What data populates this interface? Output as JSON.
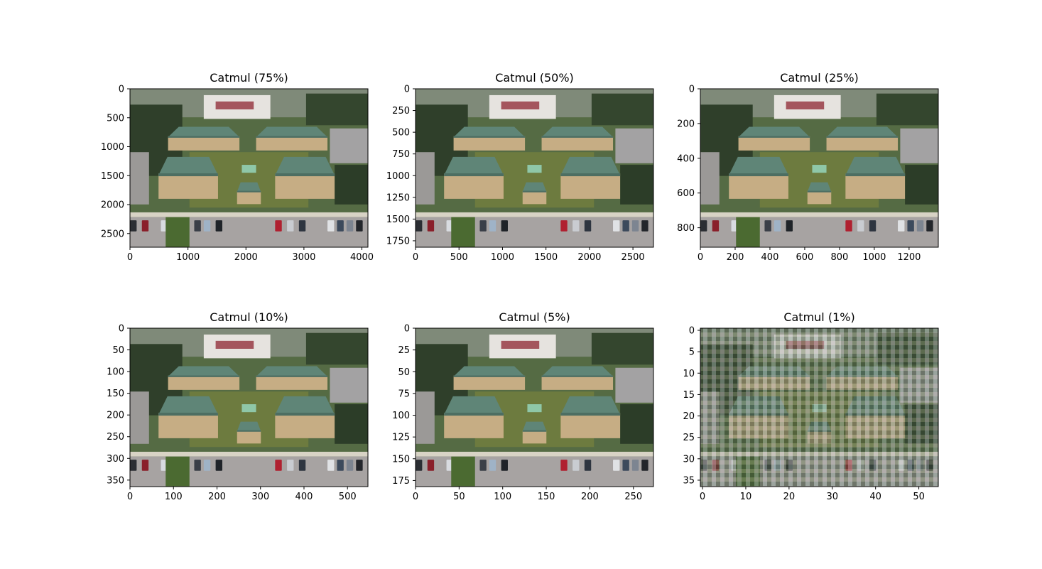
{
  "figure": {
    "background": "#ffffff"
  },
  "chart_data": [
    {
      "type": "image",
      "title": "Catmul (75%)",
      "xlim": [
        0,
        4104
      ],
      "ylim": [
        2736,
        0
      ],
      "xticks": [
        0,
        1000,
        2000,
        3000,
        4000
      ],
      "yticks": [
        0,
        500,
        1000,
        1500,
        2000,
        2500
      ],
      "pixelated": false
    },
    {
      "type": "image",
      "title": "Catmul (50%)",
      "xlim": [
        0,
        2736
      ],
      "ylim": [
        1824,
        0
      ],
      "xticks": [
        0,
        500,
        1000,
        1500,
        2000,
        2500
      ],
      "yticks": [
        0,
        250,
        500,
        750,
        1000,
        1250,
        1500,
        1750
      ],
      "pixelated": false
    },
    {
      "type": "image",
      "title": "Catmul (25%)",
      "xlim": [
        0,
        1368
      ],
      "ylim": [
        912,
        0
      ],
      "xticks": [
        0,
        200,
        400,
        600,
        800,
        1000,
        1200
      ],
      "yticks": [
        0,
        200,
        400,
        600,
        800
      ],
      "pixelated": false
    },
    {
      "type": "image",
      "title": "Catmul (10%)",
      "xlim": [
        0,
        547
      ],
      "ylim": [
        365,
        0
      ],
      "xticks": [
        0,
        100,
        200,
        300,
        400,
        500
      ],
      "yticks": [
        0,
        50,
        100,
        150,
        200,
        250,
        300,
        350
      ],
      "pixelated": false
    },
    {
      "type": "image",
      "title": "Catmul (5%)",
      "xlim": [
        0,
        273
      ],
      "ylim": [
        182,
        0
      ],
      "xticks": [
        0,
        50,
        100,
        150,
        200,
        250
      ],
      "yticks": [
        0,
        25,
        50,
        75,
        100,
        125,
        150,
        175
      ],
      "pixelated": false
    },
    {
      "type": "image",
      "title": "Catmul (1%)",
      "xlim": [
        -0.5,
        54.5
      ],
      "ylim": [
        36.5,
        -0.5
      ],
      "xticks": [
        0,
        10,
        20,
        30,
        40,
        50
      ],
      "yticks": [
        0,
        5,
        10,
        15,
        20,
        25,
        30,
        35
      ],
      "pixelated": true
    }
  ]
}
